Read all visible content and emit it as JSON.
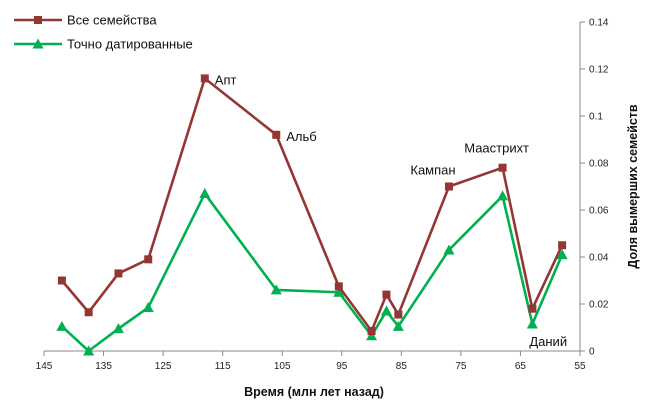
{
  "chart_data": {
    "type": "line",
    "xlabel": "Время (млн лет назад)",
    "ylabel": "Доля вымерших семейств",
    "xlim": [
      145,
      55
    ],
    "ylim": [
      0,
      0.14
    ],
    "x_ticks": [
      145,
      135,
      125,
      115,
      105,
      95,
      85,
      75,
      65,
      55
    ],
    "y_ticks": [
      0,
      0.02,
      0.04,
      0.06,
      0.08,
      0.1,
      0.12,
      0.14
    ],
    "y_tick_labels": [
      "0",
      "0.02",
      "0.04",
      "0.06",
      "0.08",
      "0.1",
      "0.12",
      "0.14"
    ],
    "grid": false,
    "legend_position": "top-left",
    "series": [
      {
        "name": "Все семейства",
        "color": "#943634",
        "marker": "square",
        "x": [
          142,
          137.5,
          132.5,
          127.5,
          118,
          106,
          95.5,
          90,
          87.5,
          85.5,
          77,
          68,
          63,
          58
        ],
        "y": [
          0.03,
          0.0165,
          0.033,
          0.039,
          0.116,
          0.092,
          0.0275,
          0.0085,
          0.024,
          0.0155,
          0.07,
          0.078,
          0.018,
          0.045
        ]
      },
      {
        "name": "Точно датированные",
        "color": "#00B050",
        "marker": "triangle",
        "x": [
          142,
          137.5,
          132.5,
          127.5,
          118,
          106,
          95.5,
          90,
          87.5,
          85.5,
          77,
          68,
          63,
          58
        ],
        "y": [
          0.0105,
          0,
          0.0095,
          0.0185,
          0.067,
          0.026,
          0.025,
          0.0065,
          0.017,
          0.0105,
          0.043,
          0.066,
          0.0115,
          0.041
        ]
      }
    ],
    "annotations": [
      {
        "text": "Апт",
        "x": 118,
        "y": 0.116
      },
      {
        "text": "Альб",
        "x": 106,
        "y": 0.092
      },
      {
        "text": "Кампан",
        "x": 77,
        "y": 0.07
      },
      {
        "text": "Маастрихт",
        "x": 68,
        "y": 0.078
      },
      {
        "text": "Даний",
        "x": 63,
        "y": 0.0115
      }
    ]
  }
}
